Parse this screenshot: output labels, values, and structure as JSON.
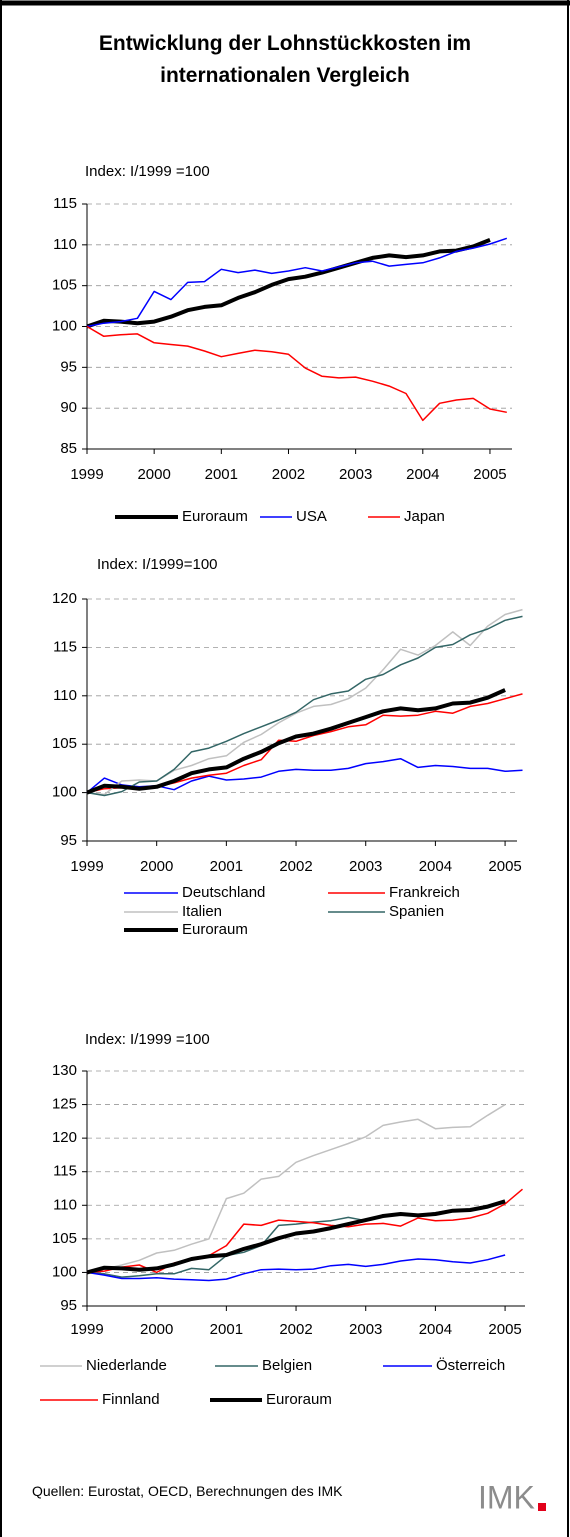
{
  "title": "Entwicklung der Lohnstückkosten im internationalen Vergleich",
  "sources": "Quellen: Eurostat, OECD, Berechnungen des IMK",
  "logo": "IMK",
  "chart_data": [
    {
      "type": "line",
      "ylabel": "Index: I/1999 =100",
      "categories": [
        "1999",
        null,
        null,
        null,
        "2000",
        null,
        null,
        null,
        "2001",
        null,
        null,
        null,
        "2002",
        null,
        null,
        null,
        "2003",
        null,
        null,
        null,
        "2004",
        null,
        null,
        null,
        "2005",
        null
      ],
      "ylim": [
        85,
        115
      ],
      "yticks": [
        85,
        90,
        95,
        100,
        105,
        110,
        115
      ],
      "grid": true,
      "series": [
        {
          "name": "Euroraum",
          "color": "#000000",
          "width": 4,
          "values": [
            100,
            100.7,
            100.6,
            100.4,
            100.6,
            101.2,
            102.0,
            102.4,
            102.6,
            103.5,
            104.2,
            105.1,
            105.8,
            106.1,
            106.6,
            107.2,
            107.8,
            108.4,
            108.7,
            108.5,
            108.7,
            109.2,
            109.3,
            109.8,
            110.6,
            null
          ]
        },
        {
          "name": "USA",
          "color": "#0000ff",
          "width": 1.5,
          "values": [
            100,
            100.4,
            100.6,
            101.0,
            104.3,
            103.3,
            105.4,
            105.5,
            107.0,
            106.6,
            106.9,
            106.5,
            106.8,
            107.2,
            106.8,
            107.3,
            107.8,
            108.0,
            107.4,
            107.6,
            107.8,
            108.4,
            109.2,
            109.6,
            110.1,
            110.8
          ]
        },
        {
          "name": "Japan",
          "color": "#ff0000",
          "width": 1.5,
          "values": [
            100,
            98.8,
            99.0,
            99.1,
            98.0,
            97.8,
            97.6,
            97.0,
            96.3,
            96.7,
            97.1,
            96.9,
            96.6,
            94.9,
            93.9,
            93.7,
            93.8,
            93.3,
            92.7,
            91.8,
            88.5,
            90.6,
            91.0,
            91.2,
            89.9,
            89.5
          ]
        }
      ]
    },
    {
      "type": "line",
      "ylabel": "Index: I/1999=100",
      "categories": [
        "1999",
        null,
        null,
        null,
        "2000",
        null,
        null,
        null,
        "2001",
        null,
        null,
        null,
        "2002",
        null,
        null,
        null,
        "2003",
        null,
        null,
        null,
        "2004",
        null,
        null,
        null,
        "2005",
        null
      ],
      "ylim": [
        95,
        120
      ],
      "yticks": [
        95,
        100,
        105,
        110,
        115,
        120
      ],
      "grid": true,
      "series": [
        {
          "name": "Deutschland",
          "color": "#0000ff",
          "width": 1.5,
          "values": [
            100,
            101.5,
            100.8,
            100.6,
            100.7,
            100.3,
            101.2,
            101.7,
            101.3,
            101.4,
            101.6,
            102.2,
            102.4,
            102.3,
            102.3,
            102.5,
            103.0,
            103.2,
            103.5,
            102.6,
            102.8,
            102.7,
            102.5,
            102.5,
            102.2,
            102.3
          ]
        },
        {
          "name": "Frankreich",
          "color": "#ff0000",
          "width": 1.5,
          "values": [
            100,
            100.4,
            100.5,
            100.3,
            100.6,
            101.0,
            101.5,
            101.8,
            102.0,
            102.8,
            103.4,
            105.4,
            105.3,
            105.9,
            106.3,
            106.8,
            107.0,
            108.0,
            107.9,
            108.0,
            108.4,
            108.2,
            108.9,
            109.2,
            109.7,
            110.2
          ]
        },
        {
          "name": "Italien",
          "color": "#c0c0c0",
          "width": 1.5,
          "values": [
            100,
            99.8,
            101.2,
            101.3,
            101.2,
            102.3,
            102.8,
            103.5,
            103.8,
            105.2,
            106.0,
            107.2,
            108.2,
            108.9,
            109.1,
            109.7,
            110.8,
            112.7,
            114.8,
            114.2,
            115.2,
            116.6,
            115.2,
            117.2,
            118.4,
            118.9
          ]
        },
        {
          "name": "Spanien",
          "color": "#336666",
          "width": 1.5,
          "values": [
            100,
            99.7,
            100.1,
            101.1,
            101.2,
            102.4,
            104.2,
            104.6,
            105.3,
            106.1,
            106.8,
            107.5,
            108.3,
            109.6,
            110.2,
            110.5,
            111.7,
            112.2,
            113.2,
            113.9,
            115.0,
            115.3,
            116.3,
            116.9,
            117.8,
            118.2
          ]
        },
        {
          "name": "Euroraum",
          "color": "#000000",
          "width": 4,
          "values": [
            100,
            100.7,
            100.6,
            100.4,
            100.6,
            101.2,
            102.0,
            102.4,
            102.6,
            103.5,
            104.2,
            105.1,
            105.8,
            106.1,
            106.6,
            107.2,
            107.8,
            108.4,
            108.7,
            108.5,
            108.7,
            109.2,
            109.3,
            109.8,
            110.6,
            null
          ]
        }
      ]
    },
    {
      "type": "line",
      "ylabel": "Index: I/1999 =100",
      "categories": [
        "1999",
        null,
        null,
        null,
        "2000",
        null,
        null,
        null,
        "2001",
        null,
        null,
        null,
        "2002",
        null,
        null,
        null,
        "2003",
        null,
        null,
        null,
        "2004",
        null,
        null,
        null,
        "2005",
        null
      ],
      "ylim": [
        95,
        130
      ],
      "yticks": [
        95,
        100,
        105,
        110,
        115,
        120,
        125,
        130
      ],
      "grid": true,
      "series": [
        {
          "name": "Niederlande",
          "color": "#c0c0c0",
          "width": 1.5,
          "values": [
            100,
            100.5,
            101.1,
            101.8,
            102.9,
            103.3,
            104.2,
            105.0,
            111.0,
            111.8,
            113.9,
            114.3,
            116.4,
            117.4,
            118.3,
            119.2,
            120.2,
            121.9,
            122.4,
            122.8,
            121.4,
            121.6,
            121.7,
            123.4,
            125.0,
            null
          ]
        },
        {
          "name": "Belgien",
          "color": "#336666",
          "width": 1.5,
          "values": [
            100,
            99.8,
            99.3,
            99.5,
            99.8,
            99.8,
            100.6,
            100.4,
            102.5,
            103.0,
            104.0,
            107.0,
            107.2,
            107.5,
            107.7,
            108.2,
            107.7,
            108.4,
            108.7,
            108.6,
            108.9,
            109.3,
            109.4,
            109.8,
            110.5,
            null
          ]
        },
        {
          "name": "Österreich",
          "color": "#0000ff",
          "width": 1.5,
          "values": [
            100,
            99.6,
            99.1,
            99.1,
            99.2,
            99.0,
            98.9,
            98.8,
            99.0,
            99.8,
            100.4,
            100.5,
            100.4,
            100.5,
            101.0,
            101.2,
            100.9,
            101.2,
            101.7,
            102.0,
            101.9,
            101.6,
            101.4,
            101.9,
            102.6,
            null
          ]
        },
        {
          "name": "Finnland",
          "color": "#ff0000",
          "width": 1.5,
          "values": [
            100,
            100.2,
            100.8,
            101.1,
            100.0,
            101.4,
            102.0,
            102.5,
            104.0,
            107.2,
            107.0,
            107.8,
            107.6,
            107.4,
            107.0,
            106.8,
            107.2,
            107.3,
            106.9,
            108.1,
            107.7,
            107.8,
            108.1,
            108.8,
            110.2,
            112.4
          ]
        },
        {
          "name": "Euroraum",
          "color": "#000000",
          "width": 4,
          "values": [
            100,
            100.7,
            100.6,
            100.4,
            100.6,
            101.2,
            102.0,
            102.4,
            102.6,
            103.5,
            104.2,
            105.1,
            105.8,
            106.1,
            106.6,
            107.2,
            107.8,
            108.4,
            108.7,
            108.5,
            108.7,
            109.2,
            109.3,
            109.8,
            110.6,
            null
          ]
        }
      ]
    }
  ]
}
